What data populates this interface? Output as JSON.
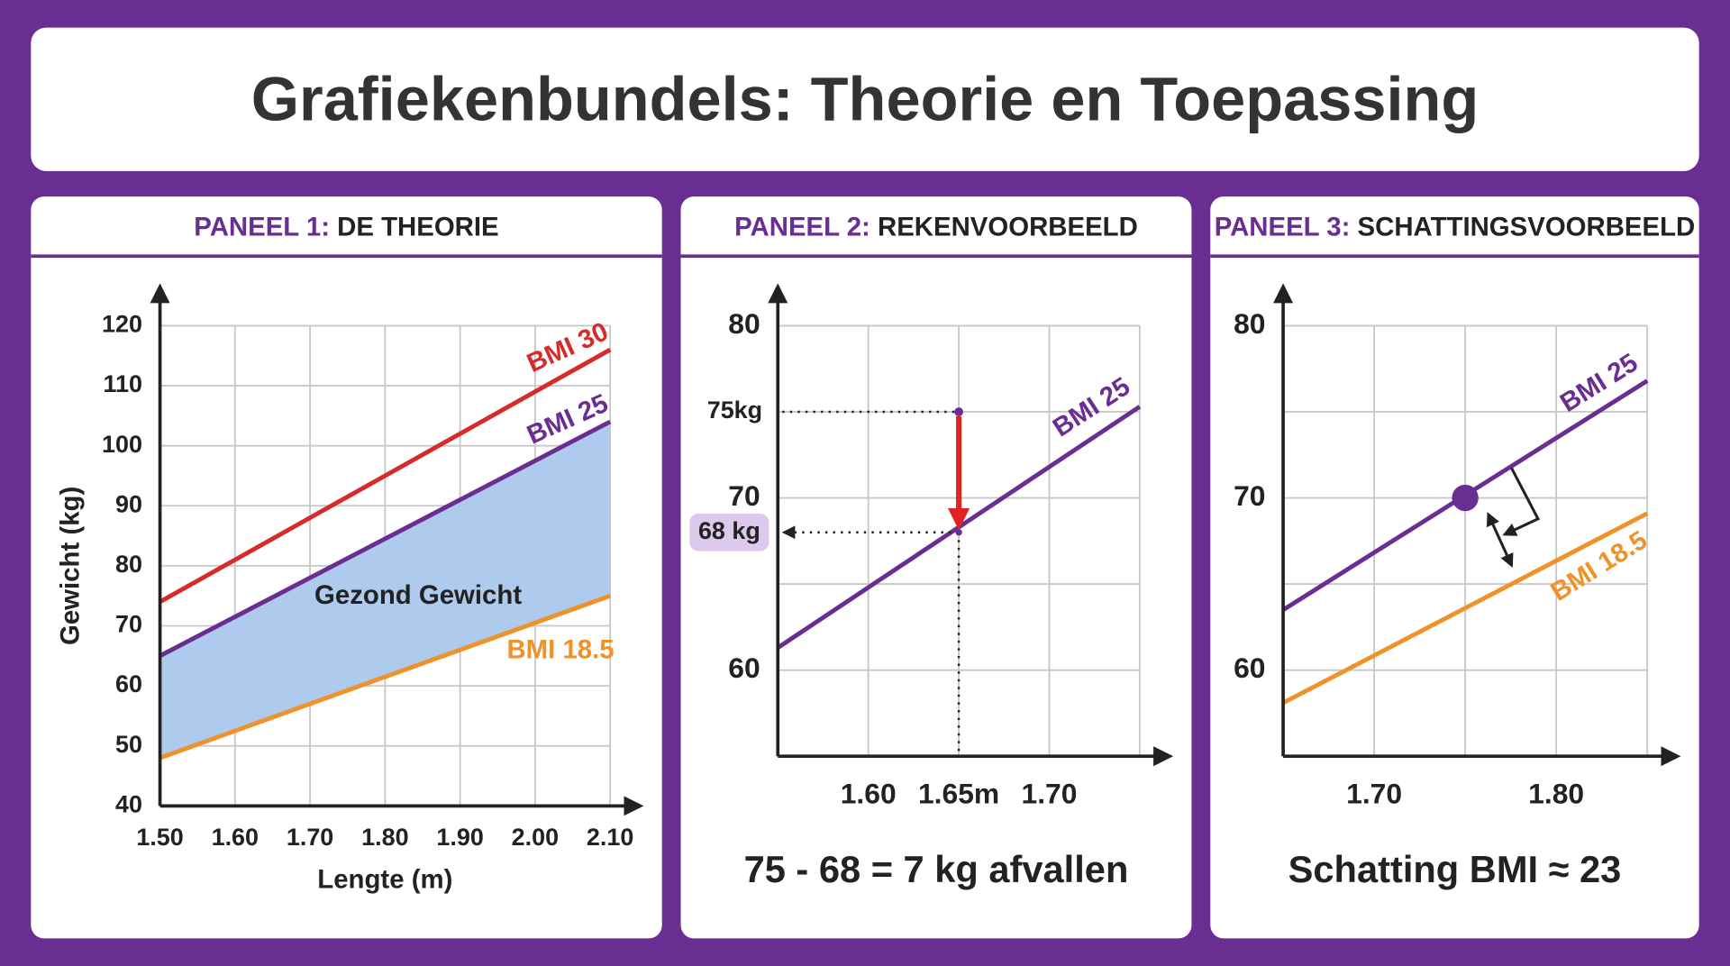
{
  "title": "Grafiekenbundels: Theorie en Toepassing",
  "chart_data": [
    {
      "type": "line",
      "panel_label": "PANEEL 1:",
      "title": "DE THEORIE",
      "x_label": "Lengte (m)",
      "y_label": "Gewicht (kg)",
      "x": [
        1.5,
        2.1
      ],
      "series": [
        {
          "name": "BMI 30",
          "color": "#d62b2b",
          "values": [
            74,
            116
          ]
        },
        {
          "name": "BMI 25",
          "color": "#6a2d91",
          "values": [
            65,
            104
          ]
        },
        {
          "name": "BMI 18.5",
          "color": "#f0922a",
          "values": [
            48,
            75
          ]
        }
      ],
      "fill_between": {
        "series": [
          1,
          2
        ],
        "color": "#aecbee",
        "label": "Gezond Gewicht"
      },
      "xlim": [
        1.5,
        2.1
      ],
      "xticks": [
        {
          "value": 1.5,
          "label": "1.50"
        },
        {
          "value": 1.6,
          "label": "1.60"
        },
        {
          "value": 1.7,
          "label": "1.70"
        },
        {
          "value": 1.8,
          "label": "1.80"
        },
        {
          "value": 1.9,
          "label": "1.90"
        },
        {
          "value": 2.0,
          "label": "2.00"
        },
        {
          "value": 2.1,
          "label": "2.10"
        }
      ],
      "ylim": [
        40,
        120
      ],
      "yticks": [
        40,
        50,
        60,
        70,
        80,
        90,
        100,
        110,
        120
      ],
      "grid": true
    },
    {
      "type": "line",
      "panel_label": "PANEEL 2:",
      "title": "REKENVOORBEELD",
      "x": [
        1.55,
        1.75
      ],
      "series": [
        {
          "name": "BMI 25",
          "color": "#6a2d91",
          "values": [
            61.3,
            75.3
          ]
        }
      ],
      "points": [
        {
          "x": 1.65,
          "y": 75,
          "label": "75kg"
        },
        {
          "x": 1.65,
          "y": 68,
          "label": "68 kg"
        }
      ],
      "caption": "75 - 68 = 7 kg afvallen",
      "xlim": [
        1.55,
        1.75
      ],
      "xticks": [
        {
          "value": 1.6,
          "label": "1.60"
        },
        {
          "value": 1.65,
          "label": "1.65m"
        },
        {
          "value": 1.7,
          "label": "1.70"
        }
      ],
      "ylim": [
        55,
        80
      ],
      "yticks": [
        60,
        70,
        80
      ],
      "grid": true
    },
    {
      "type": "line",
      "panel_label": "PANEEL 3:",
      "title": "SCHATTINGSVOORBEELD",
      "x": [
        1.65,
        1.85
      ],
      "series": [
        {
          "name": "BMI 25",
          "color": "#6a2d91",
          "values": [
            63.5,
            76.8
          ]
        },
        {
          "name": "BMI 18.5",
          "color": "#f0922a",
          "values": [
            58.1,
            69.1
          ]
        }
      ],
      "points": [
        {
          "x": 1.75,
          "y": 70
        }
      ],
      "caption": "Schatting BMI ≈ 23",
      "xlim": [
        1.65,
        1.85
      ],
      "xticks": [
        {
          "value": 1.7,
          "label": "1.70"
        },
        {
          "value": 1.8,
          "label": "1.80"
        }
      ],
      "ylim": [
        55,
        80
      ],
      "yticks": [
        60,
        70,
        80
      ],
      "grid": true
    }
  ]
}
